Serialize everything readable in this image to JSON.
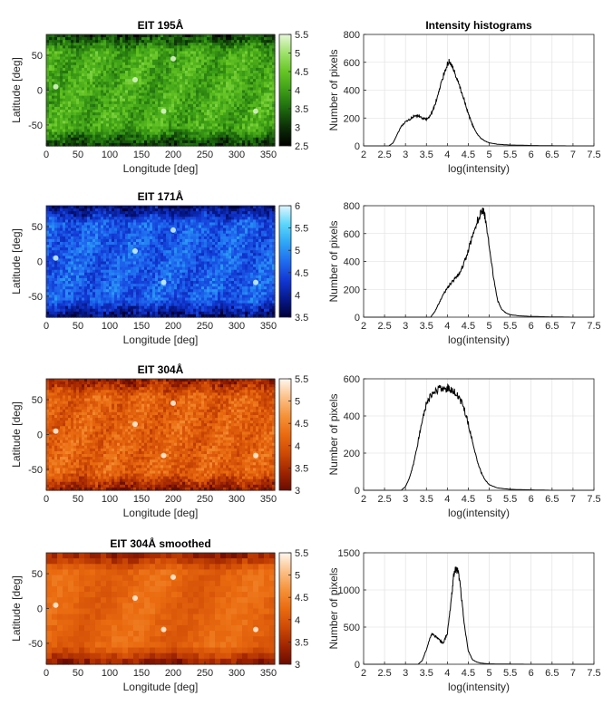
{
  "chart_data": [
    {
      "type": "heatmap",
      "title": "EIT 195Å",
      "xlabel": "Longitude [deg]",
      "ylabel": "Latitude [deg]",
      "xlim": [
        0,
        360
      ],
      "ylim": [
        -80,
        80
      ],
      "xticks": [
        "0",
        "50",
        "100",
        "150",
        "200",
        "250",
        "300",
        "350"
      ],
      "yticks": [
        "-50",
        "0",
        "50"
      ],
      "colorbar": {
        "min": 2.5,
        "max": 5.5,
        "ticks": [
          "2.5",
          "3",
          "3.5",
          "4",
          "4.5",
          "5",
          "5.5"
        ]
      },
      "colormap": [
        "#000000",
        "#0b2e06",
        "#1d6a0d",
        "#3d9e16",
        "#66c624",
        "#9ee26c",
        "#e6f8d8"
      ],
      "mean_level": 0.55
    },
    {
      "type": "line",
      "title": "Intensity histograms",
      "xlabel": "log(intensity)",
      "ylabel": "Number of pixels",
      "xlim": [
        2,
        7.5
      ],
      "ylim": [
        0,
        800
      ],
      "xticks": [
        "2",
        "2.5",
        "3",
        "3.5",
        "4",
        "4.5",
        "5",
        "5.5",
        "6",
        "6.5",
        "7",
        "7.5"
      ],
      "yticks": [
        "0",
        "200",
        "400",
        "600",
        "800"
      ],
      "x": [
        2.6,
        2.7,
        2.8,
        2.9,
        3.0,
        3.1,
        3.2,
        3.3,
        3.4,
        3.5,
        3.6,
        3.7,
        3.8,
        3.9,
        4.0,
        4.05,
        4.1,
        4.2,
        4.3,
        4.4,
        4.5,
        4.6,
        4.7,
        4.8,
        4.9,
        5.0,
        5.2,
        5.5,
        6.0,
        6.5,
        7.0,
        7.5
      ],
      "values": [
        0,
        20,
        80,
        140,
        170,
        190,
        210,
        215,
        200,
        190,
        220,
        290,
        390,
        500,
        590,
        605,
        580,
        500,
        420,
        330,
        230,
        150,
        90,
        55,
        35,
        22,
        12,
        6,
        3,
        1,
        0,
        0
      ]
    },
    {
      "type": "heatmap",
      "title": "EIT 171Å",
      "xlabel": "Longitude [deg]",
      "ylabel": "Latitude [deg]",
      "xlim": [
        0,
        360
      ],
      "ylim": [
        -80,
        80
      ],
      "xticks": [
        "0",
        "50",
        "100",
        "150",
        "200",
        "250",
        "300",
        "350"
      ],
      "yticks": [
        "-50",
        "0",
        "50"
      ],
      "colorbar": {
        "min": 3.5,
        "max": 6,
        "ticks": [
          "3.5",
          "4",
          "4.5",
          "5",
          "5.5",
          "6"
        ]
      },
      "colormap": [
        "#00003a",
        "#061a8e",
        "#1238d4",
        "#1f6cf0",
        "#2ea6f6",
        "#5ad6fb",
        "#dff6ff"
      ],
      "mean_level": 0.45
    },
    {
      "type": "line",
      "title": "",
      "xlabel": "log(intensity)",
      "ylabel": "Number of pixels",
      "xlim": [
        2,
        7.5
      ],
      "ylim": [
        0,
        800
      ],
      "xticks": [
        "2",
        "2.5",
        "3",
        "3.5",
        "4",
        "4.5",
        "5",
        "5.5",
        "6",
        "6.5",
        "7",
        "7.5"
      ],
      "yticks": [
        "0",
        "200",
        "400",
        "600",
        "800"
      ],
      "x": [
        3.6,
        3.7,
        3.8,
        3.9,
        4.0,
        4.1,
        4.2,
        4.3,
        4.4,
        4.5,
        4.6,
        4.7,
        4.8,
        4.85,
        4.9,
        5.0,
        5.1,
        5.2,
        5.3,
        5.4,
        5.5,
        5.7,
        6.0,
        6.5,
        7.0,
        7.5
      ],
      "values": [
        0,
        40,
        100,
        160,
        210,
        250,
        280,
        320,
        390,
        480,
        580,
        680,
        750,
        770,
        720,
        520,
        290,
        120,
        55,
        30,
        18,
        10,
        5,
        2,
        0,
        0
      ]
    },
    {
      "type": "heatmap",
      "title": "EIT 304Å",
      "xlabel": "Longitude [deg]",
      "ylabel": "Latitude [deg]",
      "xlim": [
        0,
        360
      ],
      "ylim": [
        -80,
        80
      ],
      "xticks": [
        "0",
        "50",
        "100",
        "150",
        "200",
        "250",
        "300",
        "350"
      ],
      "yticks": [
        "-50",
        "0",
        "50"
      ],
      "colorbar": {
        "min": 3,
        "max": 5.5,
        "ticks": [
          "3",
          "3.5",
          "4",
          "4.5",
          "5",
          "5.5"
        ]
      },
      "colormap": [
        "#6a0c00",
        "#a22600",
        "#cf4a05",
        "#ea6b10",
        "#f59238",
        "#fcc088",
        "#fff6ee"
      ],
      "mean_level": 0.45
    },
    {
      "type": "line",
      "title": "",
      "xlabel": "log(intensity)",
      "ylabel": "Number of pixels",
      "xlim": [
        2,
        7.5
      ],
      "ylim": [
        0,
        600
      ],
      "xticks": [
        "2",
        "2.5",
        "3",
        "3.5",
        "4",
        "4.5",
        "5",
        "5.5",
        "6",
        "6.5",
        "7",
        "7.5"
      ],
      "yticks": [
        "0",
        "200",
        "400",
        "600"
      ],
      "x": [
        2.9,
        3.0,
        3.1,
        3.2,
        3.3,
        3.4,
        3.5,
        3.6,
        3.7,
        3.8,
        3.9,
        4.0,
        4.1,
        4.2,
        4.3,
        4.4,
        4.5,
        4.6,
        4.7,
        4.8,
        4.9,
        5.0,
        5.2,
        5.5,
        6.0,
        6.5,
        7.0,
        7.5
      ],
      "values": [
        0,
        20,
        70,
        150,
        260,
        380,
        460,
        510,
        530,
        545,
        550,
        550,
        540,
        520,
        490,
        440,
        360,
        260,
        170,
        100,
        55,
        30,
        12,
        5,
        2,
        0,
        0,
        0
      ]
    },
    {
      "type": "heatmap",
      "title": "EIT 304Å smoothed",
      "xlabel": "Longitude [deg]",
      "ylabel": "Latitude [deg]",
      "xlim": [
        0,
        360
      ],
      "ylim": [
        -80,
        80
      ],
      "xticks": [
        "0",
        "50",
        "100",
        "150",
        "200",
        "250",
        "300",
        "350"
      ],
      "yticks": [
        "-50",
        "0",
        "50"
      ],
      "colorbar": {
        "min": 3,
        "max": 5.5,
        "ticks": [
          "3",
          "3.5",
          "4",
          "4.5",
          "5",
          "5.5"
        ]
      },
      "colormap": [
        "#6a0c00",
        "#a22600",
        "#cf4a05",
        "#ea6b10",
        "#f59238",
        "#fcc088",
        "#fff6ee"
      ],
      "mean_level": 0.47,
      "smooth": true
    },
    {
      "type": "line",
      "title": "",
      "xlabel": "log(intensity)",
      "ylabel": "Number of pixels",
      "xlim": [
        2,
        7.5
      ],
      "ylim": [
        0,
        1500
      ],
      "xticks": [
        "2",
        "2.5",
        "3",
        "3.5",
        "4",
        "4.5",
        "5",
        "5.5",
        "6",
        "6.5",
        "7",
        "7.5"
      ],
      "yticks": [
        "0",
        "500",
        "1000",
        "1500"
      ],
      "x": [
        3.3,
        3.4,
        3.5,
        3.6,
        3.65,
        3.7,
        3.8,
        3.9,
        4.0,
        4.1,
        4.15,
        4.2,
        4.25,
        4.3,
        4.4,
        4.5,
        4.6,
        4.7,
        4.8,
        5.0,
        5.5,
        6.0,
        7.0,
        7.5
      ],
      "values": [
        0,
        50,
        200,
        380,
        410,
        380,
        330,
        280,
        420,
        900,
        1200,
        1280,
        1250,
        1100,
        550,
        180,
        60,
        30,
        15,
        5,
        2,
        0,
        0,
        0
      ]
    }
  ]
}
